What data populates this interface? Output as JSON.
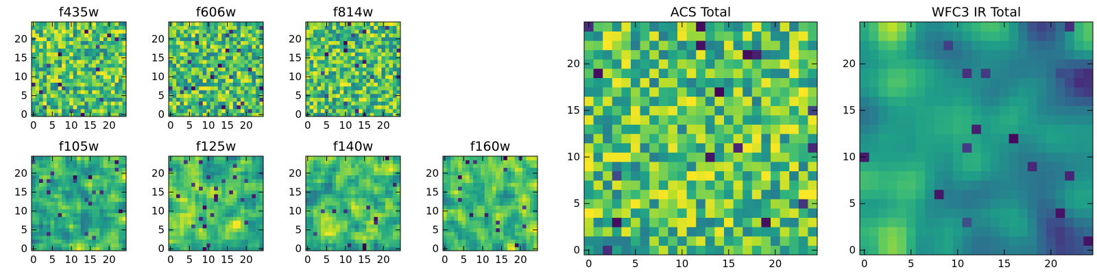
{
  "figure": {
    "colormap": "viridis",
    "background": "#ffffff",
    "panel_count": 9
  },
  "chart_data": [
    {
      "type": "heatmap",
      "title": "f435w",
      "grid": [
        25,
        25
      ],
      "xlim": [
        -0.5,
        24.5
      ],
      "ylim": [
        -0.5,
        24.5
      ],
      "xticks": [
        0,
        5,
        10,
        15,
        20
      ],
      "yticks": [
        0,
        5,
        10,
        15,
        20
      ],
      "texture": "noise",
      "seed": 11
    },
    {
      "type": "heatmap",
      "title": "f606w",
      "grid": [
        25,
        25
      ],
      "xlim": [
        -0.5,
        24.5
      ],
      "ylim": [
        -0.5,
        24.5
      ],
      "xticks": [
        0,
        5,
        10,
        15,
        20
      ],
      "yticks": [
        0,
        5,
        10,
        15,
        20
      ],
      "texture": "noise",
      "seed": 23
    },
    {
      "type": "heatmap",
      "title": "f814w",
      "grid": [
        25,
        25
      ],
      "xlim": [
        -0.5,
        24.5
      ],
      "ylim": [
        -0.5,
        24.5
      ],
      "xticks": [
        0,
        5,
        10,
        15,
        20
      ],
      "yticks": [
        0,
        5,
        10,
        15,
        20
      ],
      "texture": "noise",
      "seed": 37
    },
    {
      "type": "heatmap",
      "title": "f105w",
      "grid": [
        25,
        25
      ],
      "xlim": [
        -0.5,
        24.5
      ],
      "ylim": [
        -0.5,
        24.5
      ],
      "xticks": [
        0,
        5,
        10,
        15,
        20
      ],
      "yticks": [
        0,
        5,
        10,
        15,
        20
      ],
      "texture": "smooth",
      "seed": 41
    },
    {
      "type": "heatmap",
      "title": "f125w",
      "grid": [
        25,
        25
      ],
      "xlim": [
        -0.5,
        24.5
      ],
      "ylim": [
        -0.5,
        24.5
      ],
      "xticks": [
        0,
        5,
        10,
        15,
        20
      ],
      "yticks": [
        0,
        5,
        10,
        15,
        20
      ],
      "texture": "smooth",
      "seed": 53
    },
    {
      "type": "heatmap",
      "title": "f140w",
      "grid": [
        25,
        25
      ],
      "xlim": [
        -0.5,
        24.5
      ],
      "ylim": [
        -0.5,
        24.5
      ],
      "xticks": [
        0,
        5,
        10,
        15,
        20
      ],
      "yticks": [
        0,
        5,
        10,
        15,
        20
      ],
      "texture": "smooth",
      "seed": 67
    },
    {
      "type": "heatmap",
      "title": "f160w",
      "grid": [
        25,
        25
      ],
      "xlim": [
        -0.5,
        24.5
      ],
      "ylim": [
        -0.5,
        24.5
      ],
      "xticks": [
        0,
        5,
        10,
        15,
        20
      ],
      "yticks": [
        0,
        5,
        10,
        15,
        20
      ],
      "texture": "smooth",
      "seed": 79
    },
    {
      "type": "heatmap",
      "title": "ACS Total",
      "grid": [
        25,
        25
      ],
      "xlim": [
        -0.5,
        24.5
      ],
      "ylim": [
        -0.5,
        24.5
      ],
      "xticks": [
        0,
        5,
        10,
        15,
        20
      ],
      "yticks": [
        0,
        5,
        10,
        15,
        20
      ],
      "texture": "noise",
      "seed": 97
    },
    {
      "type": "heatmap",
      "title": "WFC3 IR Total",
      "grid": [
        25,
        25
      ],
      "xlim": [
        -0.5,
        24.5
      ],
      "ylim": [
        -0.5,
        24.5
      ],
      "xticks": [
        0,
        5,
        10,
        15,
        20
      ],
      "yticks": [
        0,
        5,
        10,
        15,
        20
      ],
      "texture": "smooth_gradient",
      "seed": 113
    }
  ]
}
